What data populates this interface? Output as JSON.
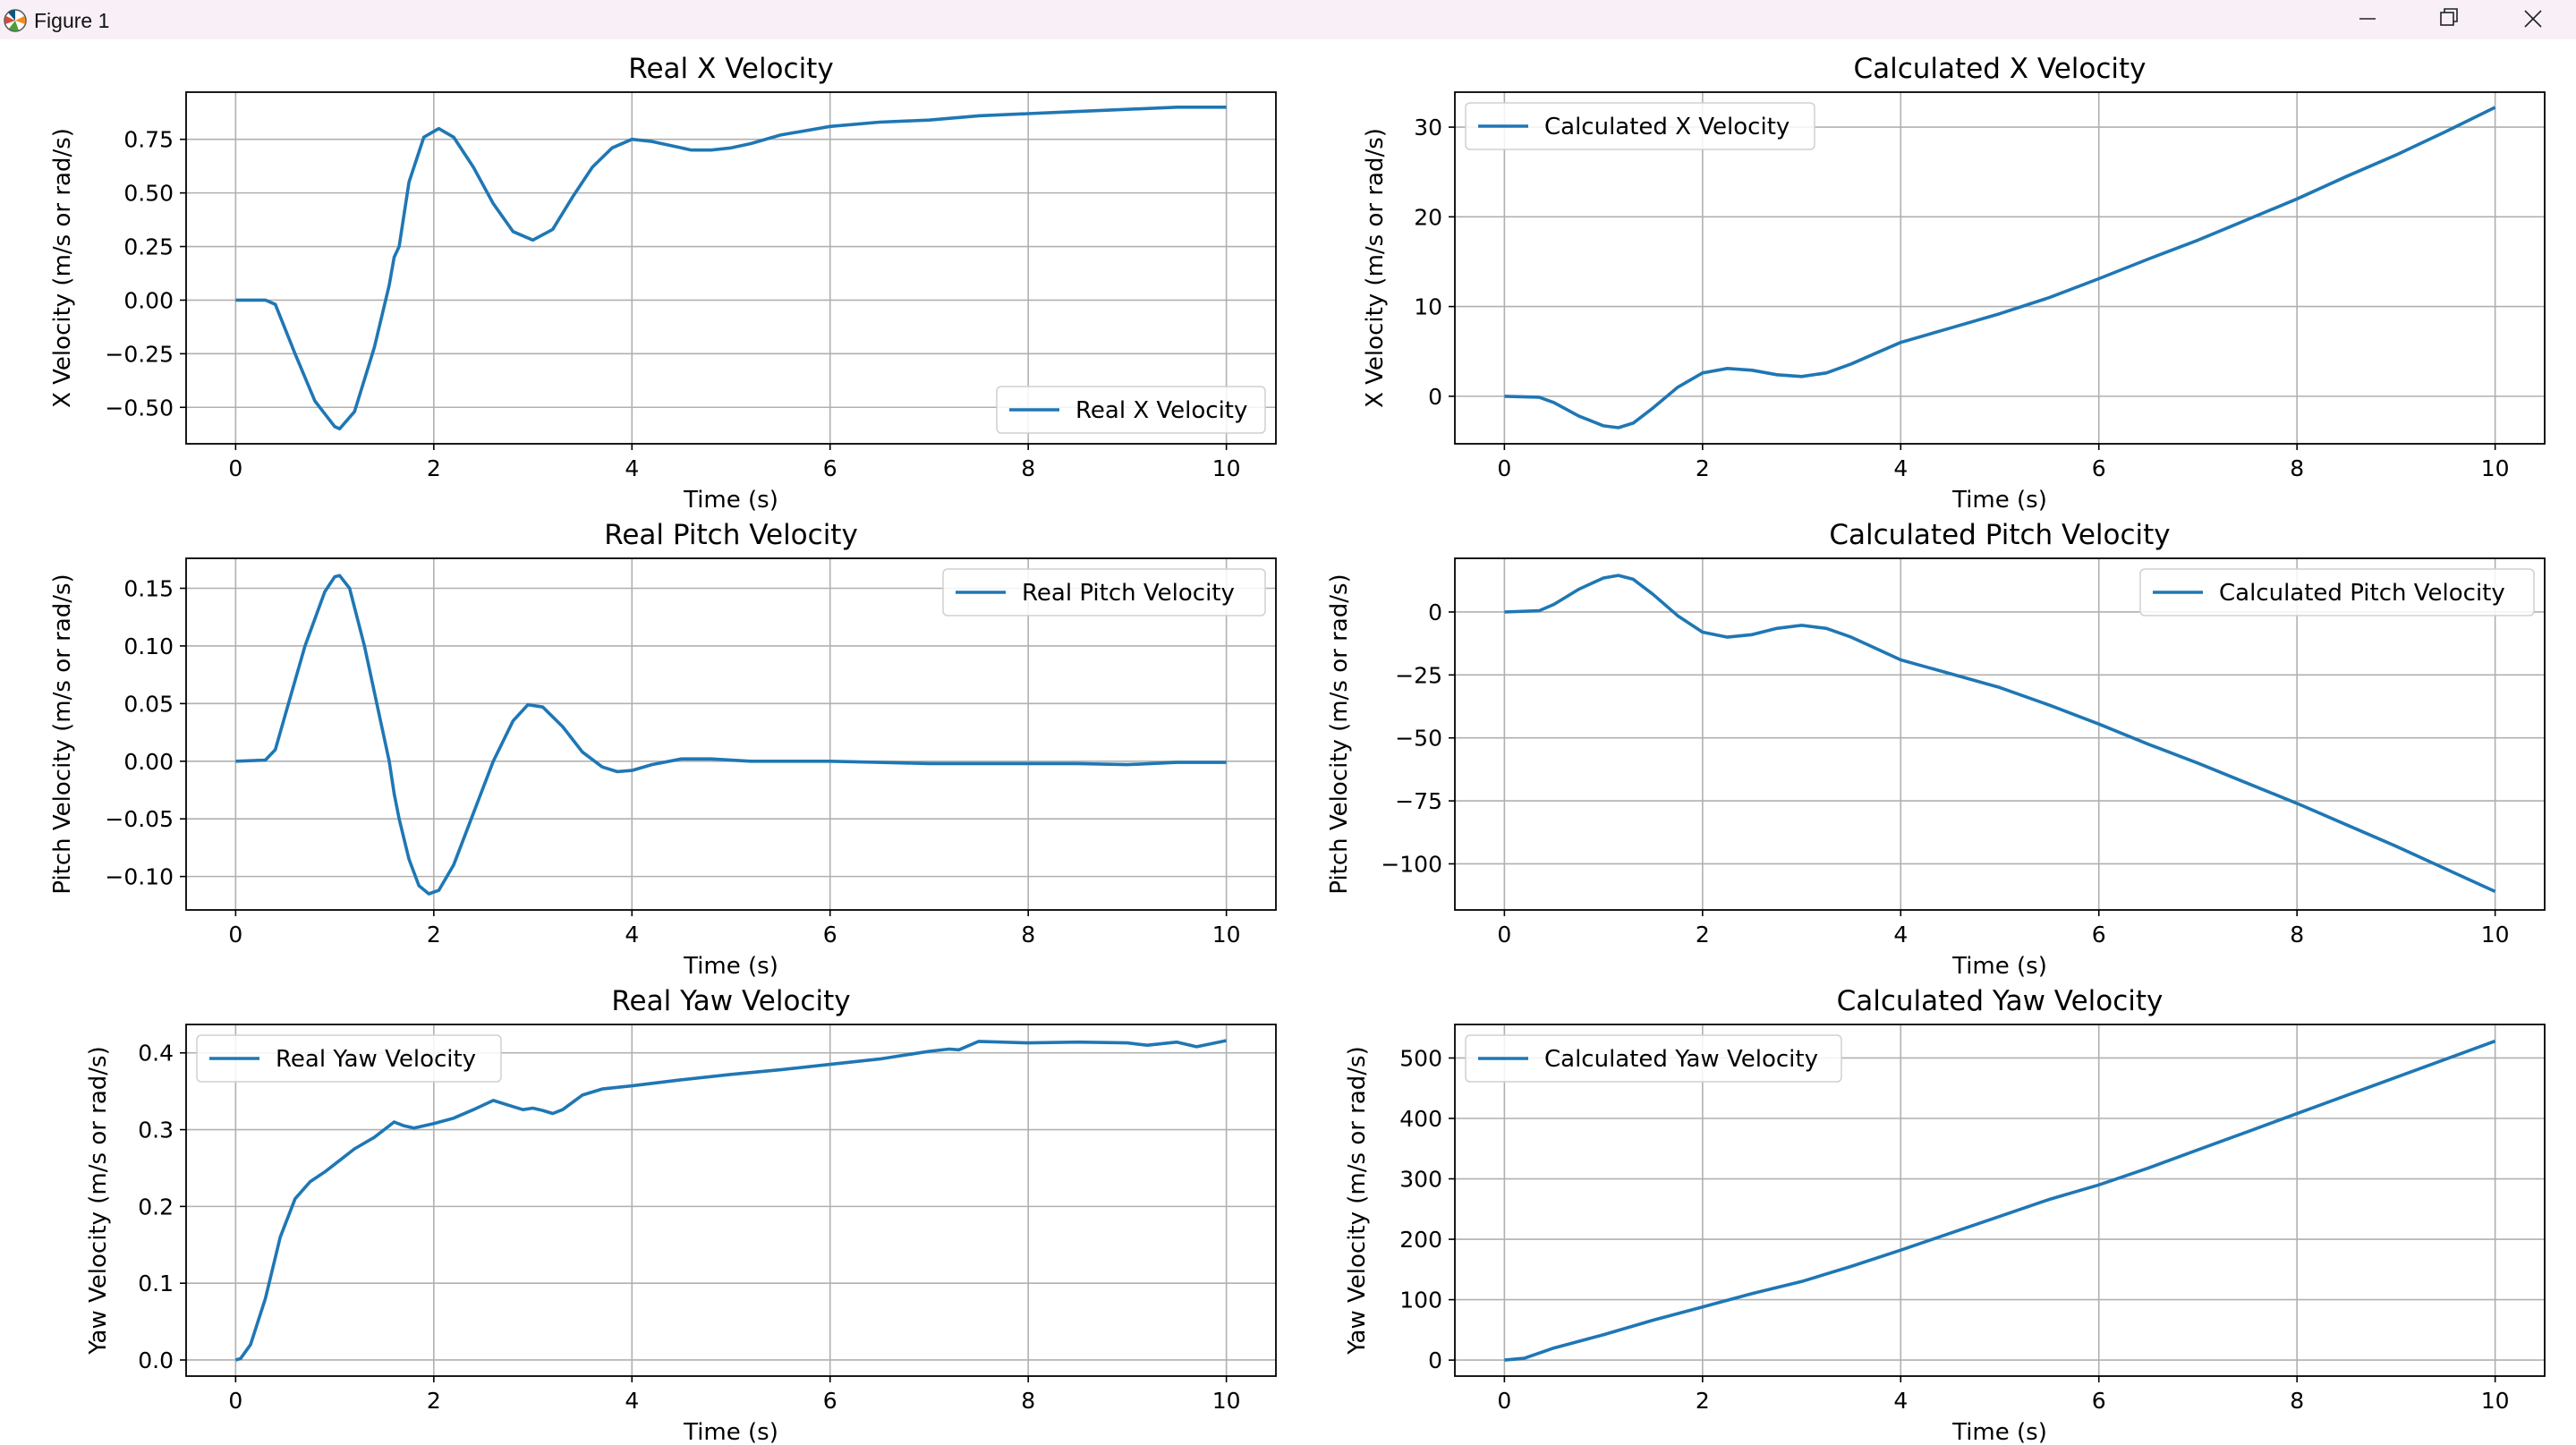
{
  "window": {
    "title": "Figure 1",
    "icons": {
      "app": "matplotlib-logo-icon",
      "minimize": "minimize-icon",
      "maximize": "restore-icon",
      "close": "close-icon"
    }
  },
  "colors": {
    "line": "#1f77b4",
    "grid": "#b0b0b0",
    "titlebar": "#f8eff7"
  },
  "chart_data": [
    {
      "type": "line",
      "title": "Real X Velocity",
      "xlabel": "Time (s)",
      "ylabel": "X Velocity (m/s or rad/s)",
      "xlim": [
        -0.5,
        10.5
      ],
      "ylim": [
        -0.67,
        0.97
      ],
      "xticks": [
        0,
        2,
        4,
        6,
        8,
        10
      ],
      "yticks": [
        -0.5,
        -0.25,
        0.0,
        0.25,
        0.5,
        0.75
      ],
      "ytick_labels": [
        "−0.50",
        "−0.25",
        "0.00",
        "0.25",
        "0.50",
        "0.75"
      ],
      "grid": true,
      "legend": "lower right",
      "series": [
        {
          "name": "Real X Velocity",
          "x": [
            0,
            0.3,
            0.4,
            0.6,
            0.8,
            1.0,
            1.05,
            1.2,
            1.4,
            1.55,
            1.6,
            1.65,
            1.75,
            1.9,
            2.05,
            2.2,
            2.4,
            2.6,
            2.8,
            3.0,
            3.2,
            3.4,
            3.6,
            3.8,
            4.0,
            4.2,
            4.4,
            4.6,
            4.8,
            5.0,
            5.2,
            5.5,
            6.0,
            6.5,
            7.0,
            7.5,
            8.0,
            8.5,
            9.0,
            9.5,
            10.0
          ],
          "y": [
            0.0,
            0.0,
            -0.02,
            -0.25,
            -0.47,
            -0.59,
            -0.6,
            -0.52,
            -0.22,
            0.07,
            0.2,
            0.25,
            0.55,
            0.76,
            0.8,
            0.76,
            0.62,
            0.45,
            0.32,
            0.28,
            0.33,
            0.48,
            0.62,
            0.71,
            0.75,
            0.74,
            0.72,
            0.7,
            0.7,
            0.71,
            0.73,
            0.77,
            0.81,
            0.83,
            0.84,
            0.86,
            0.87,
            0.88,
            0.89,
            0.9,
            0.9
          ]
        }
      ]
    },
    {
      "type": "line",
      "title": "Calculated X Velocity",
      "xlabel": "Time (s)",
      "ylabel": "X Velocity (m/s or rad/s)",
      "xlim": [
        -0.5,
        10.5
      ],
      "ylim": [
        -5.3,
        33.9
      ],
      "xticks": [
        0,
        2,
        4,
        6,
        8,
        10
      ],
      "yticks": [
        0,
        10,
        20,
        30
      ],
      "ytick_labels": [
        "0",
        "10",
        "20",
        "30"
      ],
      "grid": true,
      "legend": "upper left",
      "series": [
        {
          "name": "Calculated X Velocity",
          "x": [
            0,
            0.35,
            0.5,
            0.75,
            1.0,
            1.15,
            1.3,
            1.5,
            1.75,
            2.0,
            2.25,
            2.5,
            2.75,
            3.0,
            3.25,
            3.5,
            3.75,
            4.0,
            4.5,
            5.0,
            5.5,
            6.0,
            6.5,
            7.0,
            7.5,
            8.0,
            8.5,
            9.0,
            9.5,
            10.0
          ],
          "y": [
            0.0,
            -0.1,
            -0.7,
            -2.2,
            -3.3,
            -3.5,
            -3.0,
            -1.3,
            1.0,
            2.6,
            3.1,
            2.9,
            2.4,
            2.2,
            2.6,
            3.6,
            4.8,
            6.0,
            7.6,
            9.2,
            11.0,
            13.1,
            15.3,
            17.4,
            19.7,
            22.0,
            24.5,
            26.9,
            29.5,
            32.2
          ]
        }
      ]
    },
    {
      "type": "line",
      "title": "Real Pitch Velocity",
      "xlabel": "Time (s)",
      "ylabel": "Pitch Velocity (m/s or rad/s)",
      "xlim": [
        -0.5,
        10.5
      ],
      "ylim": [
        -0.129,
        0.176
      ],
      "xticks": [
        0,
        2,
        4,
        6,
        8,
        10
      ],
      "yticks": [
        -0.1,
        -0.05,
        0.0,
        0.05,
        0.1,
        0.15
      ],
      "ytick_labels": [
        "−0.10",
        "−0.05",
        "0.00",
        "0.05",
        "0.10",
        "0.15"
      ],
      "grid": true,
      "legend": "upper right",
      "series": [
        {
          "name": "Real Pitch Velocity",
          "x": [
            0,
            0.3,
            0.4,
            0.5,
            0.7,
            0.9,
            1.0,
            1.05,
            1.15,
            1.3,
            1.45,
            1.55,
            1.6,
            1.65,
            1.75,
            1.85,
            1.95,
            2.05,
            2.2,
            2.4,
            2.6,
            2.8,
            2.95,
            3.1,
            3.3,
            3.5,
            3.7,
            3.85,
            4.0,
            4.2,
            4.5,
            4.8,
            5.2,
            5.6,
            6.0,
            6.5,
            7.0,
            7.5,
            8.0,
            8.5,
            9.0,
            9.5,
            10.0
          ],
          "y": [
            0.0,
            0.001,
            0.01,
            0.04,
            0.1,
            0.147,
            0.16,
            0.161,
            0.15,
            0.1,
            0.04,
            0.0,
            -0.028,
            -0.05,
            -0.085,
            -0.108,
            -0.115,
            -0.112,
            -0.09,
            -0.045,
            0.0,
            0.035,
            0.049,
            0.047,
            0.03,
            0.008,
            -0.005,
            -0.009,
            -0.008,
            -0.003,
            0.002,
            0.002,
            0.0,
            0.0,
            0.0,
            -0.001,
            -0.002,
            -0.002,
            -0.002,
            -0.002,
            -0.003,
            -0.001,
            -0.001
          ]
        }
      ]
    },
    {
      "type": "line",
      "title": "Calculated Pitch Velocity",
      "xlabel": "Time (s)",
      "ylabel": "Pitch Velocity (m/s or rad/s)",
      "xlim": [
        -0.5,
        10.5
      ],
      "ylim": [
        -118.3,
        21.3
      ],
      "xticks": [
        0,
        2,
        4,
        6,
        8,
        10
      ],
      "yticks": [
        -100,
        -75,
        -50,
        -25,
        0
      ],
      "ytick_labels": [
        "−100",
        "−75",
        "−50",
        "−25",
        "0"
      ],
      "grid": true,
      "legend": "upper right",
      "series": [
        {
          "name": "Calculated Pitch Velocity",
          "x": [
            0,
            0.35,
            0.5,
            0.75,
            1.0,
            1.15,
            1.3,
            1.5,
            1.75,
            2.0,
            2.25,
            2.5,
            2.75,
            3.0,
            3.25,
            3.5,
            3.75,
            4.0,
            4.5,
            5.0,
            5.5,
            6.0,
            6.5,
            7.0,
            7.5,
            8.0,
            8.5,
            9.0,
            9.5,
            10.0
          ],
          "y": [
            0.0,
            0.5,
            3.0,
            9.0,
            13.5,
            14.5,
            13.0,
            7.0,
            -1.5,
            -8.0,
            -10.0,
            -9.0,
            -6.5,
            -5.3,
            -6.5,
            -10.0,
            -14.5,
            -19.0,
            -24.5,
            -30.0,
            -37.0,
            -44.5,
            -52.5,
            -60.0,
            -68.0,
            -76.0,
            -84.5,
            -93.0,
            -102.0,
            -111.0
          ]
        }
      ]
    },
    {
      "type": "line",
      "title": "Real Yaw Velocity",
      "xlabel": "Time (s)",
      "ylabel": "Yaw Velocity (m/s or rad/s)",
      "xlim": [
        -0.5,
        10.5
      ],
      "ylim": [
        -0.021,
        0.437
      ],
      "xticks": [
        0,
        2,
        4,
        6,
        8,
        10
      ],
      "yticks": [
        0.0,
        0.1,
        0.2,
        0.3,
        0.4
      ],
      "ytick_labels": [
        "0.0",
        "0.1",
        "0.2",
        "0.3",
        "0.4"
      ],
      "grid": true,
      "legend": "upper left",
      "series": [
        {
          "name": "Real Yaw Velocity",
          "x": [
            0,
            0.05,
            0.15,
            0.3,
            0.45,
            0.6,
            0.75,
            0.9,
            1.0,
            1.2,
            1.4,
            1.6,
            1.7,
            1.8,
            2.0,
            2.2,
            2.4,
            2.6,
            2.8,
            2.9,
            3.0,
            3.1,
            3.2,
            3.3,
            3.5,
            3.7,
            4.0,
            4.5,
            5.0,
            5.5,
            6.0,
            6.5,
            7.0,
            7.2,
            7.3,
            7.5,
            8.0,
            8.5,
            9.0,
            9.2,
            9.5,
            9.7,
            10.0
          ],
          "y": [
            0.0,
            0.002,
            0.02,
            0.08,
            0.16,
            0.21,
            0.232,
            0.245,
            0.255,
            0.275,
            0.29,
            0.31,
            0.305,
            0.302,
            0.308,
            0.315,
            0.326,
            0.338,
            0.33,
            0.326,
            0.328,
            0.325,
            0.321,
            0.326,
            0.345,
            0.353,
            0.357,
            0.365,
            0.372,
            0.378,
            0.385,
            0.392,
            0.402,
            0.405,
            0.404,
            0.415,
            0.413,
            0.414,
            0.413,
            0.41,
            0.414,
            0.408,
            0.416
          ]
        }
      ]
    },
    {
      "type": "line",
      "title": "Calculated Yaw Velocity",
      "xlabel": "Time (s)",
      "ylabel": "Yaw Velocity (m/s or rad/s)",
      "xlim": [
        -0.5,
        10.5
      ],
      "ylim": [
        -26.5,
        555.5
      ],
      "xticks": [
        0,
        2,
        4,
        6,
        8,
        10
      ],
      "yticks": [
        0,
        100,
        200,
        300,
        400,
        500
      ],
      "ytick_labels": [
        "0",
        "100",
        "200",
        "300",
        "400",
        "500"
      ],
      "grid": true,
      "legend": "upper left",
      "series": [
        {
          "name": "Calculated Yaw Velocity",
          "x": [
            0,
            0.2,
            0.5,
            1.0,
            1.5,
            2.0,
            2.5,
            3.0,
            3.5,
            4.0,
            4.5,
            5.0,
            5.5,
            6.0,
            6.5,
            7.0,
            7.5,
            8.0,
            8.5,
            9.0,
            9.5,
            10.0
          ],
          "y": [
            0,
            3,
            20,
            42,
            66,
            88,
            110,
            130,
            155,
            182,
            210,
            238,
            266,
            290,
            318,
            348,
            378,
            408,
            438,
            468,
            498,
            528
          ]
        }
      ]
    }
  ]
}
